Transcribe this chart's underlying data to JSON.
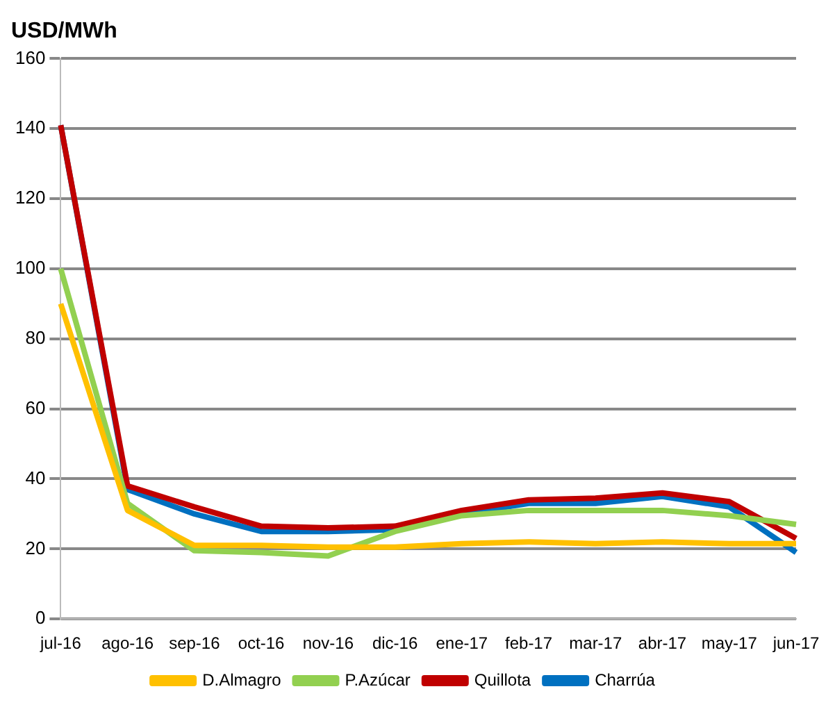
{
  "chart_data": {
    "type": "line",
    "ylabel": "USD/MWh",
    "categories": [
      "jul-16",
      "ago-16",
      "sep-16",
      "oct-16",
      "nov-16",
      "dic-16",
      "ene-17",
      "feb-17",
      "mar-17",
      "abr-17",
      "may-17",
      "jun-17"
    ],
    "series": [
      {
        "name": "D.Almagro",
        "color": "#ffc000",
        "values": [
          90,
          31,
          21,
          21,
          20.5,
          20.5,
          21.5,
          22,
          21.5,
          22,
          21.5,
          21.5
        ]
      },
      {
        "name": "P.Azúcar",
        "color": "#92d050",
        "values": [
          100,
          33,
          19.5,
          19,
          18,
          25,
          29.5,
          31,
          31,
          31,
          29.5,
          27
        ]
      },
      {
        "name": "Quillota",
        "color": "#c00000",
        "values": [
          141,
          38,
          32,
          26.5,
          26,
          26.5,
          31,
          34,
          34.5,
          36,
          33.5,
          23
        ]
      },
      {
        "name": "Charrúa",
        "color": "#0070c0",
        "values": [
          141,
          37,
          30,
          25,
          25,
          25.5,
          30,
          33,
          33,
          35,
          32,
          19
        ]
      }
    ],
    "ylim": [
      0,
      160
    ],
    "yticks": [
      0,
      20,
      40,
      60,
      80,
      100,
      120,
      140,
      160
    ],
    "grid": "y",
    "legend": "bottom",
    "marker": "none",
    "line_style": "solid"
  }
}
